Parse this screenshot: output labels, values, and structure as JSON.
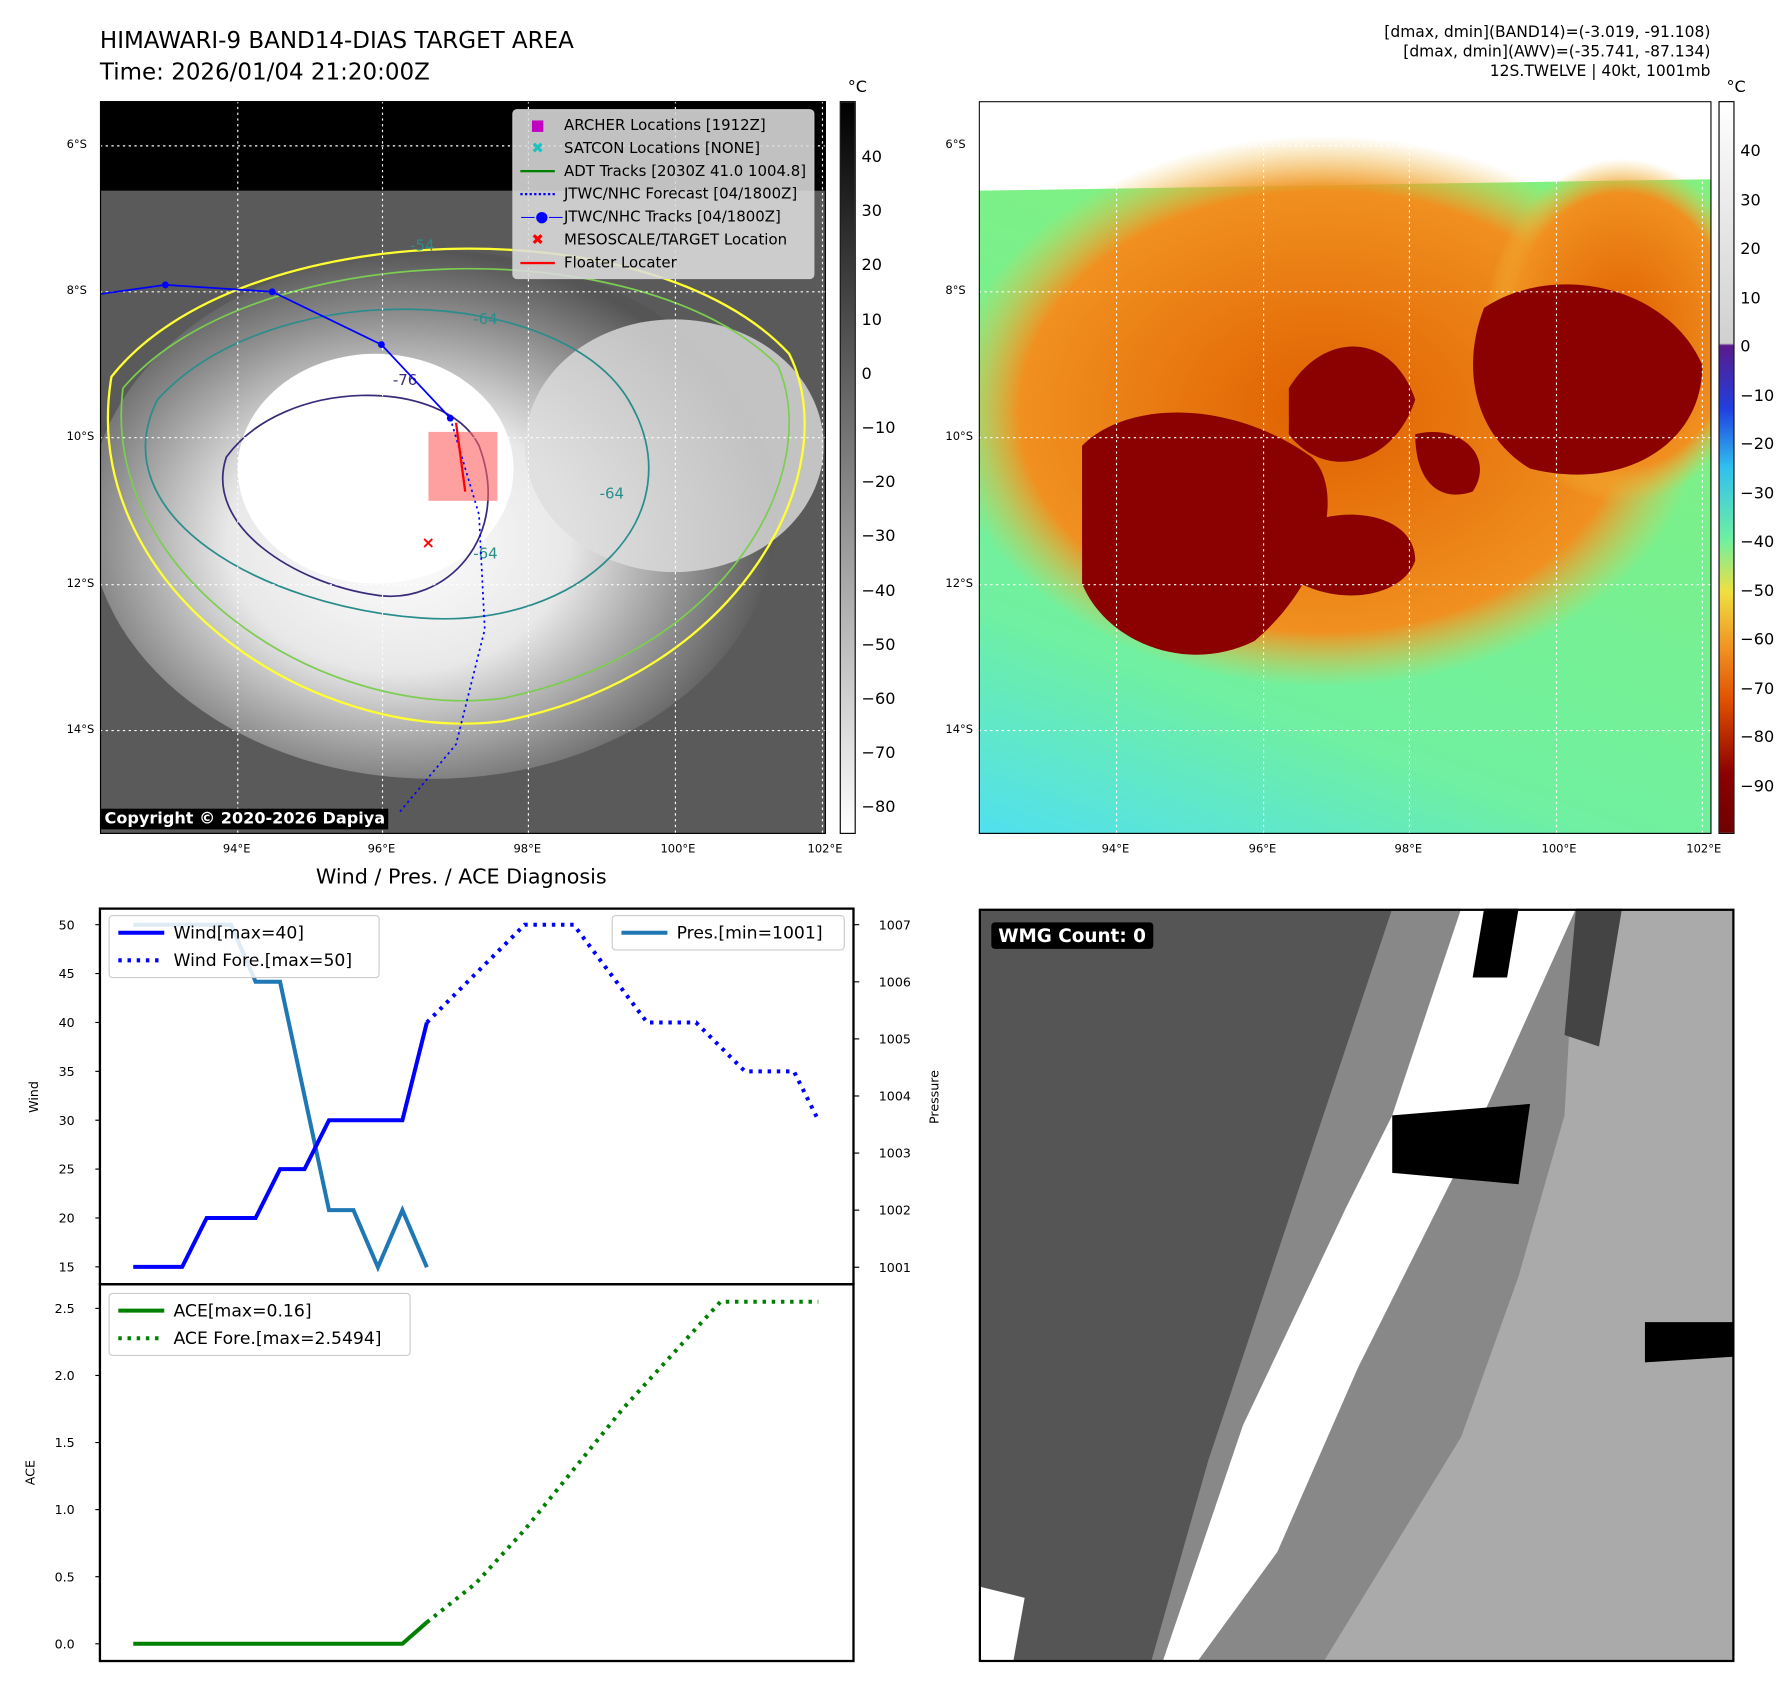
{
  "header": {
    "title": "HIMAWARI-9 BAND14-DIAS TARGET AREA",
    "time": "Time: 2026/01/04 21:20:00Z",
    "info": [
      "[dmax, dmin](BAND14)=(-3.019, -91.108)",
      "[dmax, dmin](AWV)=(-35.741, -87.134)",
      "12S.TWELVE | 40kt, 1001mb"
    ]
  },
  "map": {
    "lat_labels": [
      "6°S",
      "8°S",
      "10°S",
      "12°S",
      "14°S"
    ],
    "lon_labels": [
      "94°E",
      "96°E",
      "98°E",
      "100°E",
      "102°E"
    ],
    "copyright": "Copyright © 2020-2026 Dapiya",
    "contour_labels": [
      "-54",
      "-64",
      "-76",
      "-64",
      "-64"
    ],
    "legend": [
      {
        "label": "ARCHER Locations [1912Z]",
        "icon": "square-marker",
        "color": "#c000c0"
      },
      {
        "label": "SATCON Locations [NONE]",
        "icon": "x-marker",
        "color": "#20c0c0"
      },
      {
        "label": "ADT Tracks [2030Z 41.0 1004.8]",
        "icon": "line",
        "color": "#008000"
      },
      {
        "label": "JTWC/NHC Forecast [04/1800Z]",
        "icon": "dotted-line",
        "color": "#0000ff"
      },
      {
        "label": "JTWC/NHC Tracks [04/1800Z]",
        "icon": "line-dot",
        "color": "#0000ff"
      },
      {
        "label": "MESOSCALE/TARGET Location",
        "icon": "x-marker",
        "color": "#ff0000"
      },
      {
        "label": "Floater Locater",
        "icon": "line",
        "color": "#ff0000"
      }
    ]
  },
  "colorbar_left": {
    "unit": "°C",
    "ticks": [
      "40",
      "30",
      "20",
      "10",
      "0",
      "−10",
      "−20",
      "−30",
      "−40",
      "−50",
      "−60",
      "−70",
      "−80"
    ]
  },
  "colorbar_right": {
    "unit": "°C",
    "ticks": [
      "40",
      "30",
      "20",
      "10",
      "0",
      "−10",
      "−20",
      "−30",
      "−40",
      "−50",
      "−60",
      "−70",
      "−80",
      "−90"
    ]
  },
  "wmg": {
    "label": "WMG Count: 0"
  },
  "chart_data": [
    {
      "type": "line",
      "title": "Wind / Pres. / ACE Diagnosis",
      "ylabel": "Wind",
      "y2label": "Pressure",
      "ylim": [
        15,
        50
      ],
      "y2lim": [
        1001,
        1007
      ],
      "yticks": [
        "15",
        "20",
        "25",
        "30",
        "35",
        "40",
        "45",
        "50"
      ],
      "y2ticks": [
        "1001",
        "1002",
        "1003",
        "1004",
        "1005",
        "1006",
        "1007"
      ],
      "series": [
        {
          "name": "Wind[max=40]",
          "color": "#0000ff",
          "style": "solid",
          "x": [
            0,
            2,
            3,
            5,
            6,
            7,
            8,
            11,
            12
          ],
          "values": [
            15,
            15,
            20,
            20,
            25,
            25,
            30,
            30,
            40
          ]
        },
        {
          "name": "Wind Fore.[max=50]",
          "color": "#0000ff",
          "style": "dotted",
          "x": [
            12,
            16,
            18,
            21,
            23,
            25,
            27,
            28
          ],
          "values": [
            40,
            50,
            50,
            40,
            40,
            35,
            35,
            30
          ]
        },
        {
          "name": "Pres.[min=1001]",
          "color": "#1f77b4",
          "style": "solid",
          "axis": "right",
          "x": [
            0,
            4,
            5,
            6,
            8,
            9,
            10,
            11,
            12
          ],
          "values": [
            1007,
            1007,
            1006,
            1006,
            1002,
            1002,
            1001,
            1002,
            1001
          ]
        }
      ]
    },
    {
      "type": "line",
      "ylabel": "ACE",
      "ylim": [
        0,
        2.5
      ],
      "yticks": [
        "0.0",
        "0.5",
        "1.0",
        "1.5",
        "2.0",
        "2.5"
      ],
      "series": [
        {
          "name": "ACE[max=0.16]",
          "color": "#008000",
          "style": "solid",
          "x": [
            0,
            11,
            12
          ],
          "values": [
            0,
            0,
            0.16
          ]
        },
        {
          "name": "ACE Fore.[max=2.5494]",
          "color": "#008000",
          "style": "dotted",
          "x": [
            12,
            14,
            16,
            18,
            20,
            22,
            24,
            28
          ],
          "values": [
            0.16,
            0.45,
            0.85,
            1.3,
            1.75,
            2.15,
            2.5494,
            2.5494
          ]
        }
      ]
    }
  ]
}
